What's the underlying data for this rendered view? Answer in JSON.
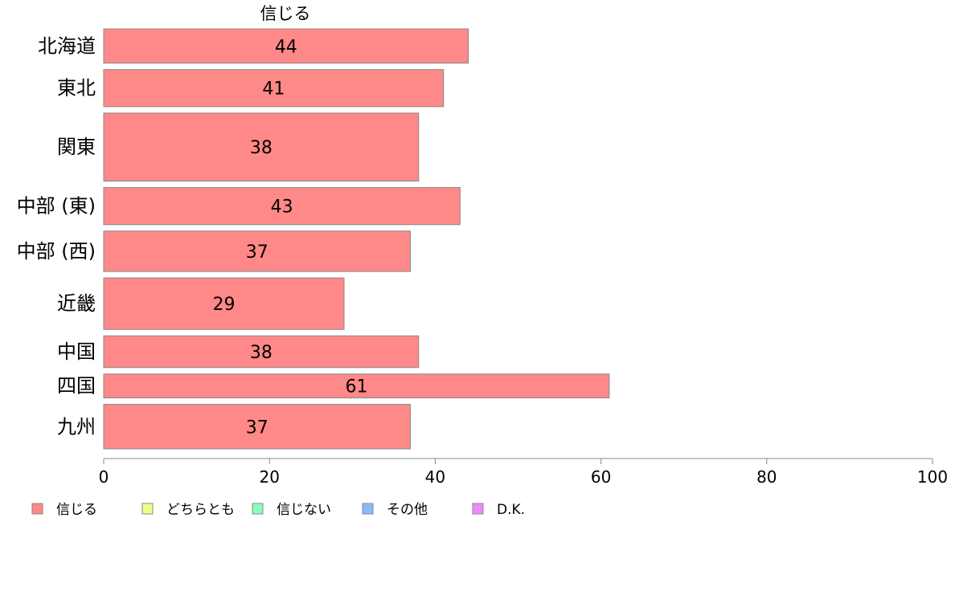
{
  "chart_data": {
    "type": "bar",
    "orientation": "horizontal",
    "title": "信じる",
    "categories": [
      "北海道",
      "東北",
      "関東",
      "中部 (東)",
      "中部 (西)",
      "近畿",
      "中国",
      "四国",
      "九州"
    ],
    "category_weights": [
      0.83,
      0.9,
      1.65,
      0.9,
      0.98,
      1.25,
      0.77,
      0.58,
      1.08
    ],
    "series": [
      {
        "name": "信じる",
        "values": [
          44,
          41,
          38,
          43,
          37,
          29,
          38,
          61,
          37
        ],
        "color": "#ff8888"
      }
    ],
    "xlim": [
      0,
      100
    ],
    "xticks": [
      0,
      20,
      40,
      60,
      80,
      100
    ],
    "grid": false,
    "legend": {
      "placement": "bottom-left",
      "entries": [
        {
          "label": "信じる",
          "color": "#ff8888"
        },
        {
          "label": "どちらとも",
          "color": "#eeff88"
        },
        {
          "label": "信じない",
          "color": "#88ffbb"
        },
        {
          "label": "その他",
          "color": "#88bbff"
        },
        {
          "label": "D.K.",
          "color": "#ee88ff"
        }
      ]
    }
  }
}
